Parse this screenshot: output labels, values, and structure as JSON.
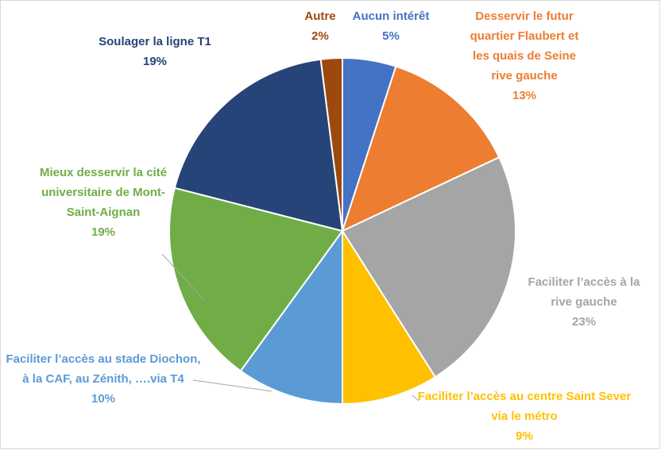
{
  "chart_data": {
    "type": "pie",
    "categories": [
      "Aucun intérêt",
      "Desservir le futur quartier Flaubert et les quais de Seine rive gauche",
      "Faciliter l’accès à la rive gauche",
      "Faciliter l’accès au centre Saint Sever via le métro",
      "Faciliter l’accès au stade Diochon, à la CAF, au Zénith, ….via T4",
      "Mieux desservir la cité universitaire de Mont-Saint-Aignan",
      "Soulager la ligne T1",
      "Autre"
    ],
    "values": [
      5,
      13,
      23,
      9,
      10,
      19,
      19,
      2
    ],
    "value_labels": [
      "5%",
      "13%",
      "23%",
      "9%",
      "10%",
      "19%",
      "19%",
      "2%"
    ],
    "colors": [
      "#4472c4",
      "#ed7d31",
      "#a5a5a5",
      "#ffc000",
      "#5b9bd5",
      "#70ad47",
      "#264478",
      "#9e480e"
    ]
  }
}
